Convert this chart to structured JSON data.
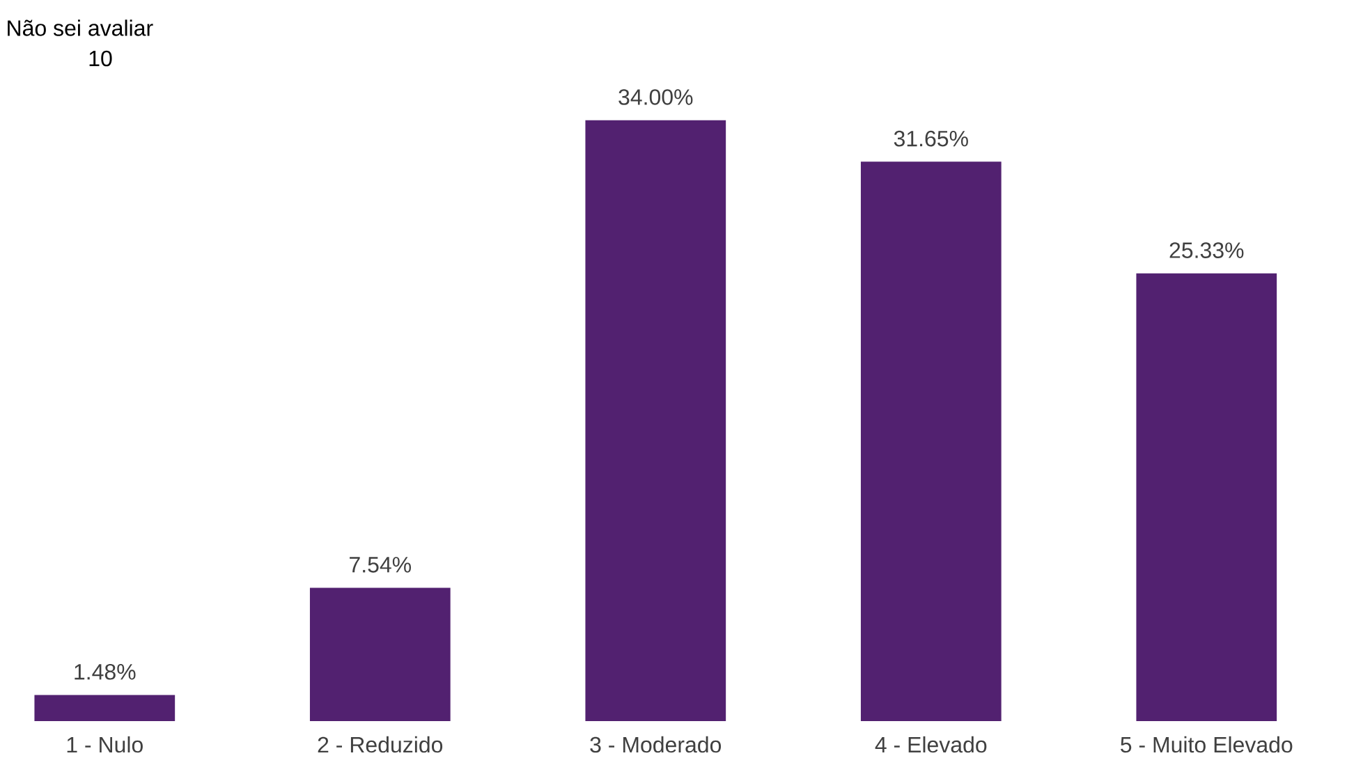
{
  "chart_data": {
    "type": "bar",
    "categories": [
      "1 - Nulo",
      "2 - Reduzido",
      "3 - Moderado",
      "4 - Elevado",
      "5 - Muito Elevado"
    ],
    "values": [
      1.48,
      7.54,
      34.0,
      31.65,
      25.33
    ],
    "value_labels": [
      "1.48%",
      "7.54%",
      "34.00%",
      "31.65%",
      "25.33%"
    ],
    "color": "#522170",
    "annotations": [
      "Não sei avaliar",
      "10"
    ]
  }
}
